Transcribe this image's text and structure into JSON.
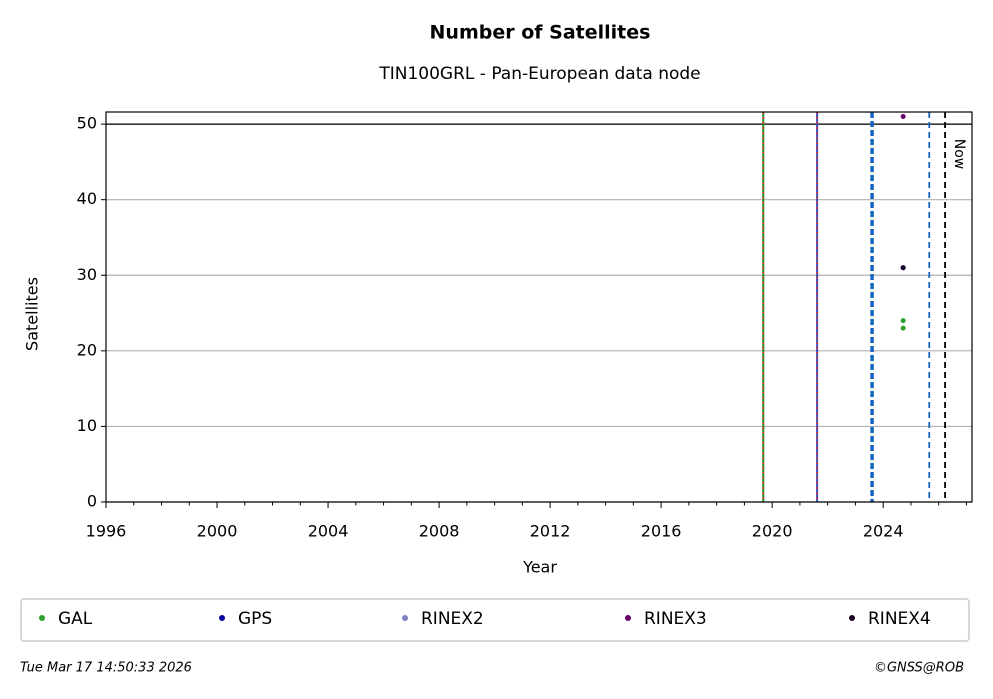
{
  "chart_data": {
    "type": "scatter",
    "title": "Number of Satellites",
    "subtitle": "TIN100GRL - Pan-European data node",
    "x_label": "Year",
    "y_label": "Satellites",
    "xlim": [
      1996,
      2027.2
    ],
    "xticks": [
      1996,
      2000,
      2004,
      2008,
      2012,
      2016,
      2020,
      2024
    ],
    "xminorticks": [
      1997,
      1998,
      1999,
      2001,
      2002,
      2003,
      2005,
      2006,
      2007,
      2009,
      2010,
      2011,
      2013,
      2014,
      2015,
      2017,
      2018,
      2019,
      2021,
      2022,
      2023,
      2025,
      2026,
      2027
    ],
    "ylim": [
      0,
      51.6
    ],
    "yticks": [
      0,
      10,
      20,
      30,
      40,
      50
    ],
    "grid": true,
    "hline": 50,
    "series": [
      {
        "name": "GAL",
        "color": "#2ca02c",
        "x": [
          2024.72,
          2024.72
        ],
        "values": [
          24,
          23
        ]
      },
      {
        "name": "GPS",
        "color": "#0000a0",
        "x": [
          2024.72
        ],
        "values": [
          31
        ]
      },
      {
        "name": "RINEX2",
        "color": "#8080c0",
        "x": [],
        "values": []
      },
      {
        "name": "RINEX3",
        "color": "#6a006a",
        "x": [
          2024.72
        ],
        "values": [
          51
        ]
      },
      {
        "name": "RINEX4",
        "color": "#1a0020",
        "x": [
          2024.72
        ],
        "values": [
          31
        ]
      }
    ],
    "vlines": [
      {
        "x": 2019.68,
        "color": "#1f8f1f",
        "dash": "none",
        "width": 2
      },
      {
        "x": 2019.68,
        "color": "#d62728",
        "dash": "2 3",
        "width": 1.5
      },
      {
        "x": 2021.62,
        "color": "#3050c0",
        "dash": "none",
        "width": 2
      },
      {
        "x": 2021.62,
        "color": "#d62728",
        "dash": "2 3",
        "width": 1.5
      },
      {
        "x": 2023.6,
        "color": "#1565c0",
        "dash": "6 3",
        "width": 3.5
      },
      {
        "x": 2025.66,
        "color": "#1565c0",
        "dash": "6 4",
        "width": 1.8
      },
      {
        "x": 2026.23,
        "color": "#000000",
        "dash": "6 4",
        "width": 1.8
      }
    ],
    "now_label": "Now",
    "legend": "bottom",
    "footer_left": "Tue Mar 17 14:50:33 2026",
    "footer_right": "©GNSS@ROB"
  }
}
